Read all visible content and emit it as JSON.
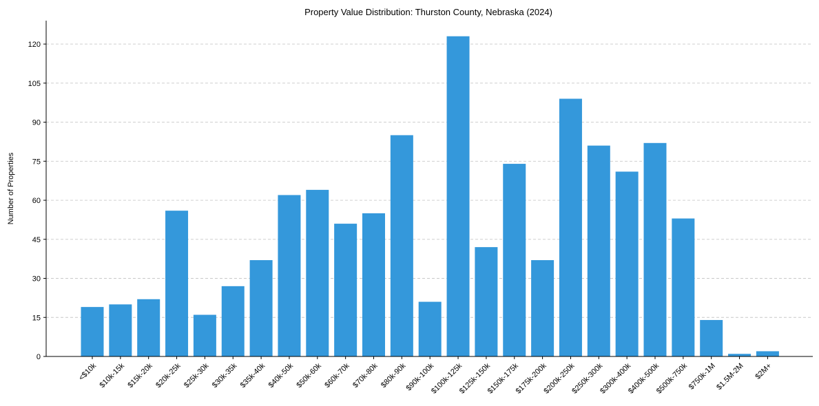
{
  "chart_data": {
    "type": "bar",
    "title": "Property Value Distribution: Thurston County, Nebraska (2024)",
    "xlabel": "",
    "ylabel": "Number of Properties",
    "categories": [
      "<$10k",
      "$10k-15k",
      "$15k-20k",
      "$20k-25k",
      "$25k-30k",
      "$30k-35k",
      "$35k-40k",
      "$40k-50k",
      "$50k-60k",
      "$60k-70k",
      "$70k-80k",
      "$80k-90k",
      "$90k-100k",
      "$100k-125k",
      "$125k-150k",
      "$150k-175k",
      "$175k-200k",
      "$200k-250k",
      "$250k-300k",
      "$300k-400k",
      "$400k-500k",
      "$500k-750k",
      "$750k-1M",
      "$1.5M-2M",
      "$2M+"
    ],
    "values": [
      19,
      20,
      22,
      56,
      16,
      27,
      37,
      62,
      64,
      51,
      55,
      85,
      21,
      123,
      42,
      74,
      37,
      99,
      81,
      71,
      82,
      53,
      14,
      1,
      2
    ],
    "ylim": [
      0,
      129
    ],
    "yticks": [
      0,
      15,
      30,
      45,
      60,
      75,
      90,
      105,
      120
    ],
    "grid": "y",
    "bar_color": "#3498db"
  }
}
